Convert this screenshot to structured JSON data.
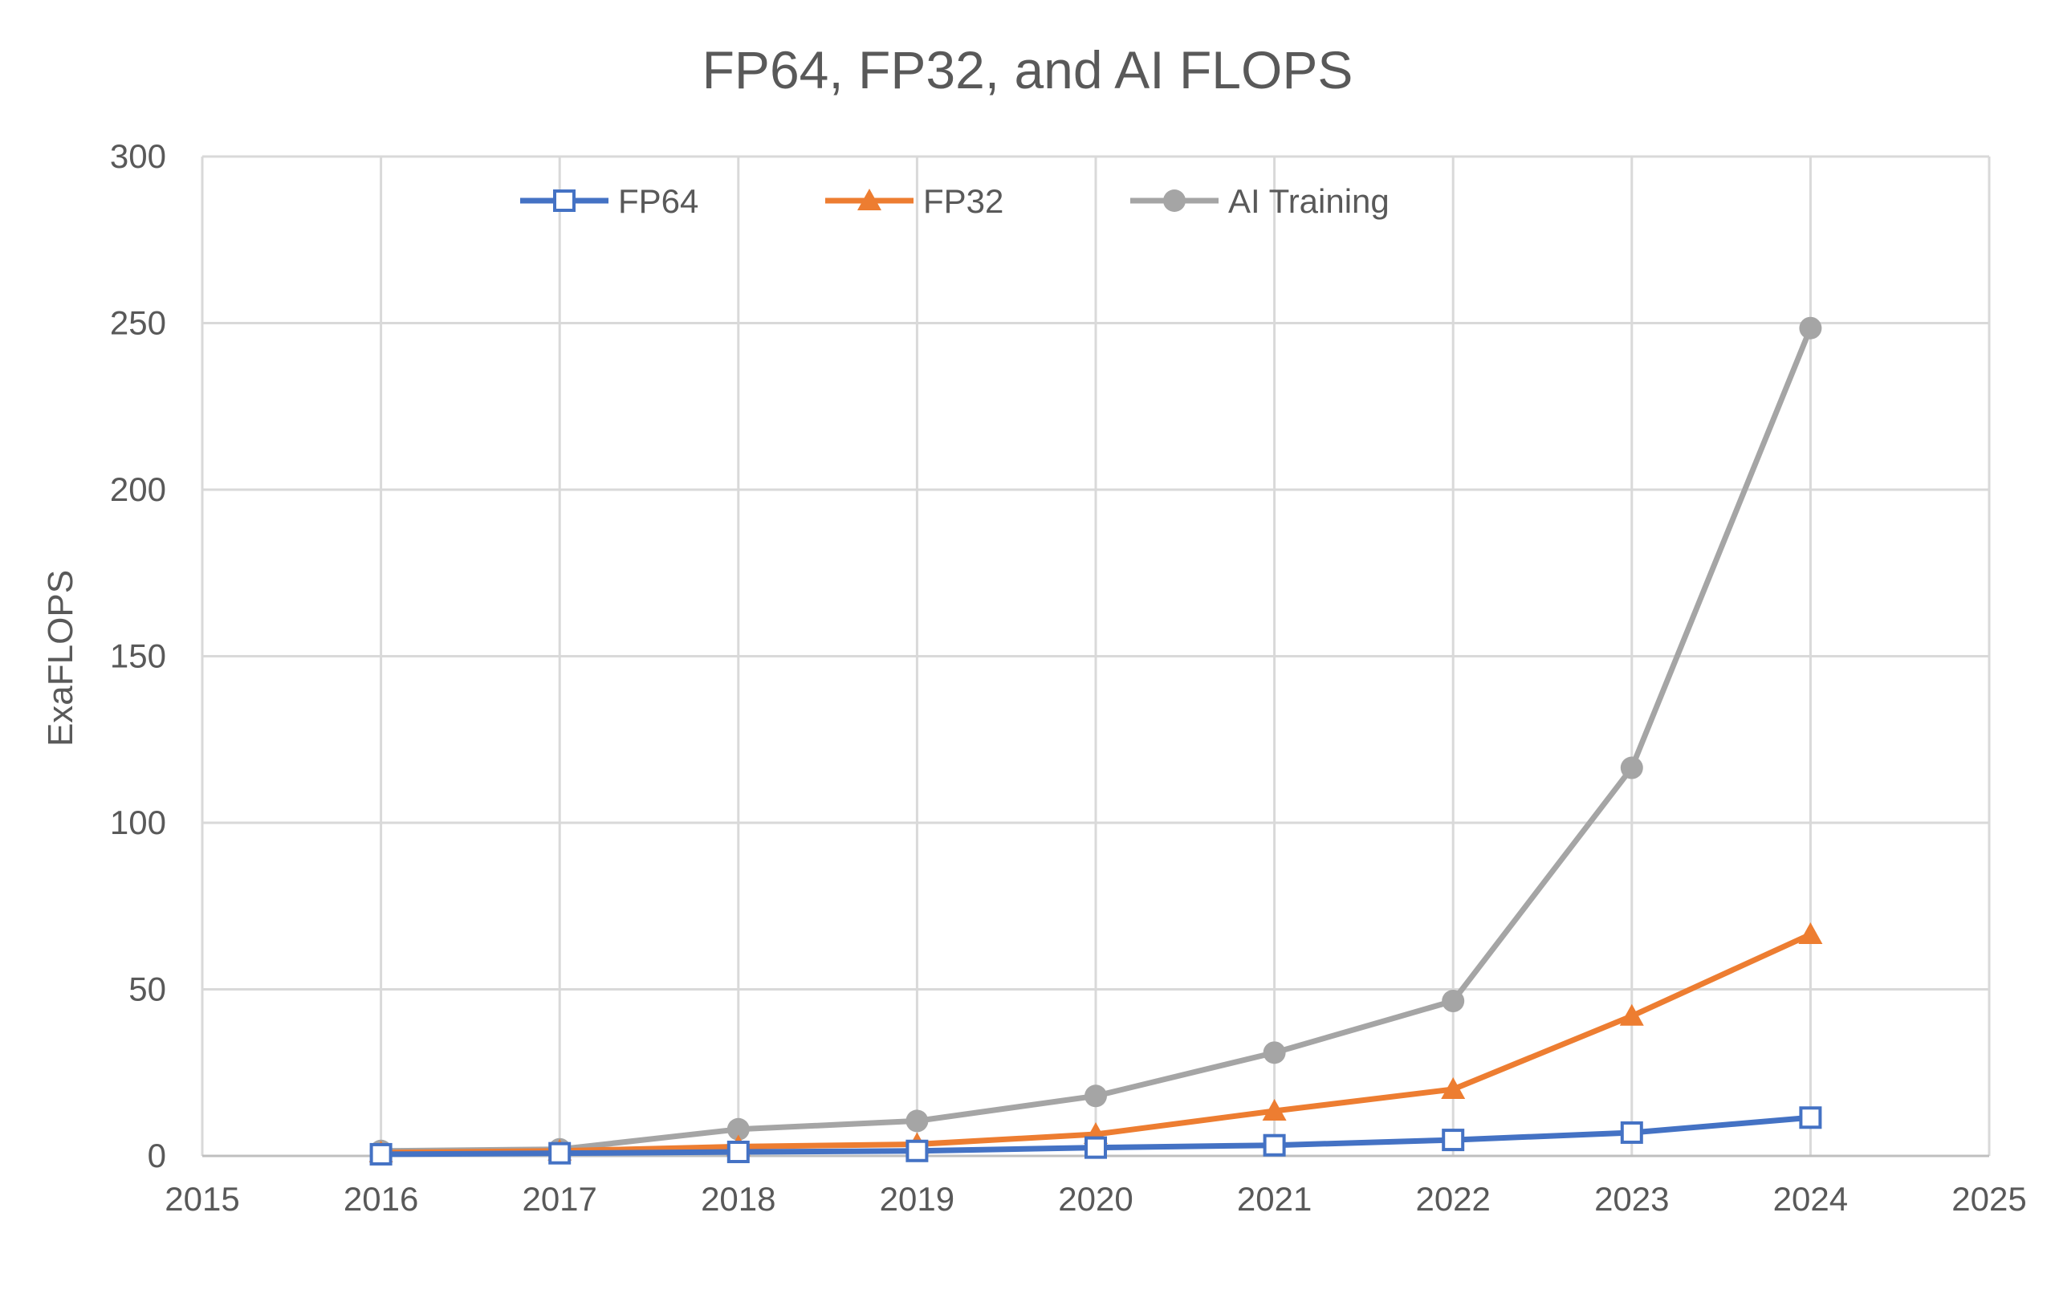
{
  "chart_data": {
    "type": "line",
    "title": "FP64, FP32, and AI FLOPS",
    "xlabel": "",
    "ylabel": "ExaFLOPS",
    "xlim": [
      2015,
      2025
    ],
    "ylim": [
      0,
      300
    ],
    "x_ticks": [
      "2015",
      "2016",
      "2017",
      "2018",
      "2019",
      "2020",
      "2021",
      "2022",
      "2023",
      "2024",
      "2025"
    ],
    "y_ticks": [
      "0",
      "50",
      "100",
      "150",
      "200",
      "250",
      "300"
    ],
    "grid": true,
    "legend_position": "top",
    "x": [
      2016,
      2017,
      2018,
      2019,
      2020,
      2021,
      2022,
      2023,
      2024
    ],
    "series": [
      {
        "name": "FP64",
        "color": "#4472C4",
        "marker": "square-open",
        "values": [
          0.5,
          0.8,
          1.2,
          1.5,
          2.5,
          3.2,
          4.8,
          7.0,
          11.5
        ]
      },
      {
        "name": "FP32",
        "color": "#ED7D31",
        "marker": "triangle",
        "values": [
          1.0,
          1.5,
          2.8,
          3.5,
          6.5,
          13.5,
          20.0,
          42.0,
          66.5
        ]
      },
      {
        "name": "AI Training",
        "color": "#A5A5A5",
        "marker": "circle",
        "values": [
          1.5,
          2.0,
          8.0,
          10.5,
          18.0,
          31.0,
          46.5,
          116.5,
          248.5
        ]
      }
    ]
  }
}
